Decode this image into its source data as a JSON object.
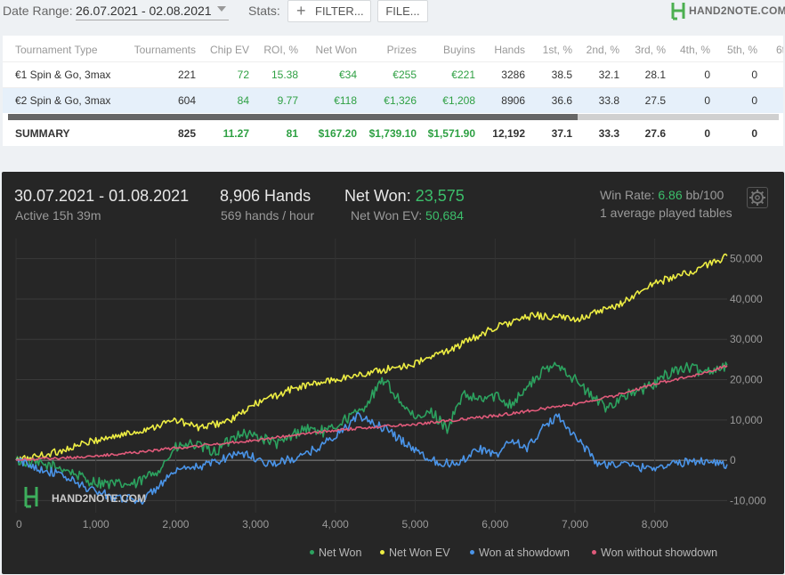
{
  "topbar": {
    "date_range_label": "Date Range:",
    "date_range_value": "26.07.2021 - 02.08.2021",
    "stats_label": "Stats:",
    "filter_button": "FILTER...",
    "file_button": "FILE...",
    "logo_text": "HAND2NOTE.COM"
  },
  "table": {
    "columns": [
      "Tournament Type",
      "Tournaments",
      "Chip EV",
      "ROI, %",
      "Net Won",
      "Prizes",
      "Buyins",
      "Hands",
      "1st, %",
      "2nd, %",
      "3rd, %",
      "4th, %",
      "5th, %",
      "6t"
    ],
    "rows": [
      [
        "€1 Spin & Go, 3max",
        "221",
        "72",
        "15.38",
        "€34",
        "€255",
        "€221",
        "3286",
        "38.5",
        "32.1",
        "28.1",
        "0",
        "0"
      ],
      [
        "€2 Spin & Go, 3max",
        "604",
        "84",
        "9.77",
        "€118",
        "€1,326",
        "€1,208",
        "8906",
        "36.6",
        "33.8",
        "27.5",
        "0",
        "0"
      ]
    ],
    "summary": [
      "SUMMARY",
      "825",
      "11.27",
      "81",
      "$167.20",
      "$1,739.10",
      "$1,571.90",
      "12,192",
      "37.1",
      "33.3",
      "27.6",
      "0",
      "0"
    ]
  },
  "chart_panel": {
    "date_range": "30.07.2021 - 01.08.2021",
    "active_time": "Active 15h 39m",
    "hands_count": "8,906 Hands",
    "hands_per_hour": "569 hands / hour",
    "net_won_label": "Net Won:",
    "net_won_value": "23,575",
    "net_won_ev_label": "Net Won  EV:",
    "net_won_ev_value": "50,684",
    "win_rate_label": "Win Rate:",
    "win_rate_value": "6.86",
    "win_rate_unit": "bb/100",
    "tables_text": "1 average played tables",
    "watermark": "HAND2NOTE.COM"
  },
  "chart_data": {
    "type": "line",
    "x_ticks": [
      "0",
      "1,000",
      "2,000",
      "3,000",
      "4,000",
      "5,000",
      "6,000",
      "7,000",
      "8,000"
    ],
    "y_ticks": [
      "50,000",
      "40,000",
      "30,000",
      "20,000",
      "10,000",
      "0",
      "-10,000"
    ],
    "xlim": [
      0,
      8906
    ],
    "ylim": [
      -13000,
      55000
    ],
    "grid": true,
    "legend_position": "bottom-right",
    "series": [
      {
        "name": "Net Won",
        "color": "#2ca25f",
        "x": [
          0,
          300,
          600,
          900,
          1200,
          1500,
          1800,
          2000,
          2200,
          2500,
          2800,
          3000,
          3300,
          3600,
          3900,
          4100,
          4300,
          4500,
          4600,
          4800,
          5000,
          5200,
          5400,
          5600,
          5800,
          6000,
          6200,
          6400,
          6600,
          6800,
          7000,
          7200,
          7400,
          7600,
          7800,
          8000,
          8200,
          8400,
          8600,
          8906
        ],
        "y": [
          0,
          -1000,
          -2000,
          -5000,
          -6000,
          -6000,
          -2000,
          3000,
          4000,
          2000,
          7000,
          6000,
          4000,
          8000,
          7000,
          10000,
          12000,
          17000,
          20000,
          15000,
          10000,
          12000,
          8000,
          16000,
          15000,
          16000,
          14000,
          18000,
          22000,
          24000,
          20000,
          16000,
          13000,
          16000,
          17000,
          19000,
          22000,
          23000,
          22000,
          23575
        ]
      },
      {
        "name": "Net Won  EV",
        "color": "#eded43",
        "x": [
          0,
          500,
          1000,
          1500,
          2000,
          2300,
          2700,
          3000,
          3500,
          4000,
          4500,
          5000,
          5500,
          6000,
          6500,
          7000,
          7500,
          8000,
          8500,
          8906
        ],
        "y": [
          0,
          2000,
          5000,
          7000,
          10000,
          8000,
          10000,
          14000,
          18000,
          20000,
          22000,
          24000,
          28000,
          33000,
          36000,
          35000,
          38000,
          44000,
          47000,
          50684
        ]
      },
      {
        "name": "Won at showdown",
        "color": "#4a94e8",
        "x": [
          0,
          300,
          600,
          900,
          1200,
          1600,
          1800,
          2000,
          2400,
          2800,
          3200,
          3600,
          4000,
          4300,
          4600,
          4900,
          5200,
          5500,
          5800,
          6000,
          6200,
          6400,
          6600,
          6800,
          7000,
          7300,
          7600,
          7900,
          8200,
          8600,
          8906
        ],
        "y": [
          0,
          -2000,
          -4000,
          -7000,
          -9000,
          -10000,
          -6000,
          -3000,
          -1000,
          2000,
          -1000,
          1000,
          6000,
          11000,
          8000,
          4000,
          0,
          -1000,
          3000,
          1000,
          5000,
          3000,
          8000,
          11000,
          6000,
          -1000,
          -1000,
          -2000,
          -1000,
          0,
          -1000
        ]
      },
      {
        "name": "Won without showdown",
        "color": "#e05a7a",
        "x": [
          0,
          1000,
          2000,
          3000,
          3800,
          4300,
          5000,
          5500,
          6000,
          6500,
          7000,
          7500,
          8000,
          8500,
          8906
        ],
        "y": [
          0,
          1000,
          3000,
          5000,
          7000,
          8000,
          9000,
          10000,
          11000,
          12500,
          14000,
          16000,
          19000,
          21000,
          23500
        ]
      }
    ]
  }
}
